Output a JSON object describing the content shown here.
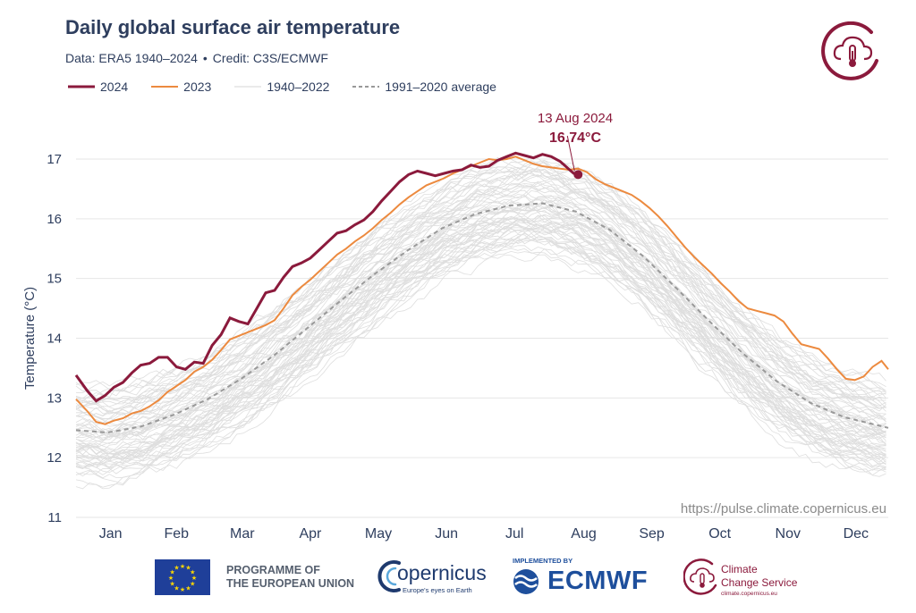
{
  "header": {
    "title": "Daily global surface air temperature",
    "data_label": "Data: ERA5 1940–2024",
    "separator": "•",
    "credit_label": "Credit: C3S/ECMWF"
  },
  "legend": [
    {
      "label": "2024",
      "color": "#8b1a3c",
      "style": "solid-thick"
    },
    {
      "label": "2023",
      "color": "#ec8a3f",
      "style": "solid"
    },
    {
      "label": "1940–2022",
      "color": "#dcdcdc",
      "style": "solid-thin"
    },
    {
      "label": "1991–2020 average",
      "color": "#999999",
      "style": "dashed"
    }
  ],
  "annotation": {
    "date": "13 Aug 2024",
    "value": "16.74°C"
  },
  "watermark": "https://pulse.climate.copernicus.eu",
  "logos": {
    "eu_line1": "PROGRAMME OF",
    "eu_line2": "THE EUROPEAN UNION",
    "copernicus_name": "opernicus",
    "copernicus_tagline": "Europe's eyes on Earth",
    "implemented_by": "IMPLEMENTED BY",
    "ecmwf": "ECMWF",
    "ccs_line1": "Climate",
    "ccs_line2": "Change Service",
    "ccs_url": "climate.copernicus.eu",
    "brand_color": "#8b1a3c",
    "copernicus_color": "#1e3a6e",
    "ecmwf_color": "#1e4f9c"
  },
  "chart_data": {
    "type": "line",
    "title": "Daily global surface air temperature",
    "ylabel": "Temperature (°C)",
    "xlabel": "",
    "ylim": [
      11,
      17.6
    ],
    "yticks": [
      11,
      12,
      13,
      14,
      15,
      16,
      17
    ],
    "grid": true,
    "x_unit": "day of year",
    "months": [
      "Jan",
      "Feb",
      "Mar",
      "Apr",
      "May",
      "Jun",
      "Jul",
      "Aug",
      "Sep",
      "Oct",
      "Nov",
      "Dec"
    ],
    "series": [
      {
        "name": "2024",
        "color": "#8b1a3c",
        "x": [
          1,
          6,
          10,
          14,
          18,
          22,
          26,
          30,
          34,
          38,
          42,
          46,
          50,
          54,
          58,
          62,
          66,
          70,
          74,
          78,
          82,
          86,
          90,
          94,
          98,
          102,
          106,
          110,
          114,
          118,
          122,
          126,
          130,
          134,
          138,
          142,
          146,
          150,
          154,
          158,
          162,
          166,
          170,
          174,
          178,
          182,
          186,
          190,
          194,
          198,
          202,
          206,
          210,
          214,
          218,
          221,
          224,
          226
        ],
        "y": [
          13.38,
          13.12,
          12.95,
          13.04,
          13.18,
          13.26,
          13.42,
          13.55,
          13.58,
          13.68,
          13.68,
          13.52,
          13.48,
          13.6,
          13.58,
          13.88,
          14.06,
          14.34,
          14.28,
          14.24,
          14.5,
          14.76,
          14.8,
          15.02,
          15.2,
          15.26,
          15.34,
          15.48,
          15.62,
          15.76,
          15.8,
          15.9,
          15.98,
          16.12,
          16.3,
          16.46,
          16.62,
          16.74,
          16.8,
          16.76,
          16.72,
          16.76,
          16.8,
          16.82,
          16.9,
          16.86,
          16.88,
          16.98,
          17.04,
          17.1,
          17.06,
          17.02,
          17.08,
          17.04,
          16.96,
          16.86,
          16.76,
          16.74
        ]
      },
      {
        "name": "2023",
        "color": "#ec8a3f",
        "x": [
          1,
          6,
          10,
          14,
          18,
          22,
          26,
          30,
          34,
          38,
          42,
          46,
          50,
          54,
          58,
          62,
          66,
          70,
          74,
          78,
          82,
          86,
          90,
          94,
          98,
          102,
          106,
          110,
          114,
          118,
          122,
          126,
          130,
          134,
          138,
          142,
          146,
          150,
          154,
          158,
          162,
          166,
          170,
          174,
          178,
          182,
          186,
          190,
          194,
          198,
          202,
          206,
          210,
          214,
          218,
          222,
          226,
          230,
          234,
          238,
          242,
          246,
          250,
          254,
          258,
          262,
          266,
          270,
          274,
          278,
          282,
          286,
          290,
          294,
          298,
          302,
          306,
          310,
          314,
          318,
          322,
          326,
          330,
          334,
          338,
          342,
          346,
          350,
          354,
          358,
          362,
          365
        ],
        "y": [
          12.98,
          12.78,
          12.6,
          12.56,
          12.62,
          12.66,
          12.74,
          12.78,
          12.86,
          12.96,
          13.1,
          13.2,
          13.3,
          13.44,
          13.52,
          13.64,
          13.8,
          13.98,
          14.04,
          14.1,
          14.16,
          14.22,
          14.3,
          14.5,
          14.72,
          14.86,
          14.98,
          15.12,
          15.26,
          15.4,
          15.5,
          15.62,
          15.72,
          15.84,
          15.98,
          16.1,
          16.24,
          16.36,
          16.46,
          16.56,
          16.62,
          16.68,
          16.76,
          16.82,
          16.88,
          16.94,
          17.0,
          16.98,
          17.0,
          17.04,
          16.98,
          16.92,
          16.88,
          16.86,
          16.84,
          16.82,
          16.84,
          16.78,
          16.66,
          16.58,
          16.52,
          16.46,
          16.4,
          16.3,
          16.18,
          16.04,
          15.88,
          15.7,
          15.52,
          15.36,
          15.22,
          15.08,
          14.92,
          14.78,
          14.62,
          14.5,
          14.46,
          14.42,
          14.38,
          14.28,
          14.08,
          13.9,
          13.86,
          13.82,
          13.66,
          13.48,
          13.32,
          13.3,
          13.36,
          13.52,
          13.62,
          13.48
        ]
      },
      {
        "name": "1991–2020 average",
        "color": "#999999",
        "dashed": true,
        "x": [
          1,
          15,
          30,
          45,
          60,
          75,
          90,
          105,
          120,
          135,
          150,
          165,
          180,
          195,
          210,
          225,
          240,
          255,
          270,
          285,
          300,
          315,
          330,
          345,
          365
        ],
        "y": [
          12.46,
          12.42,
          12.52,
          12.72,
          12.98,
          13.32,
          13.72,
          14.18,
          14.64,
          15.08,
          15.48,
          15.84,
          16.08,
          16.22,
          16.26,
          16.12,
          15.82,
          15.38,
          14.84,
          14.28,
          13.74,
          13.28,
          12.92,
          12.68,
          12.5
        ]
      }
    ]
  }
}
